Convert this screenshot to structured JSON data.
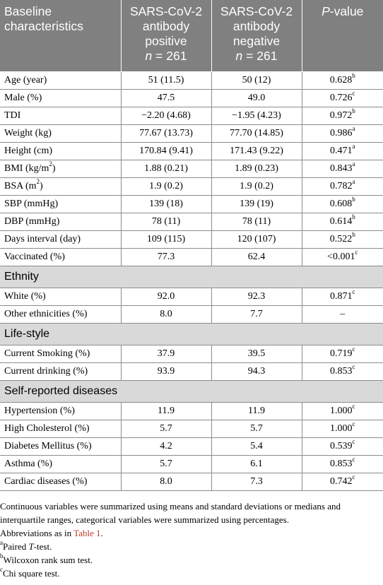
{
  "header": {
    "col1_line1": "Baseline",
    "col1_line2": "characteristics",
    "col2_line1": "SARS-CoV-2",
    "col2_line2": "antibody",
    "col2_line3": "positive",
    "col2_n_label": "n",
    "col2_n_value": " = 261",
    "col3_line1": "SARS-CoV-2",
    "col3_line2": "antibody",
    "col3_line3": "negative",
    "col3_n_label": "n",
    "col3_n_value": " = 261",
    "col4_p": "P",
    "col4_rest": "-value"
  },
  "rows": [
    {
      "label": "Age (year)",
      "pos": "51 (11.5)",
      "neg": "50 (12)",
      "p": "0.628",
      "sup": "b"
    },
    {
      "label": "Male (%)",
      "pos": "47.5",
      "neg": "49.0",
      "p": "0.726",
      "sup": "c"
    },
    {
      "label": "TDI",
      "pos": "−2.20 (4.68)",
      "neg": "−1.95 (4.23)",
      "p": "0.972",
      "sup": "b"
    },
    {
      "label": "Weight (kg)",
      "pos": "77.67 (13.73)",
      "neg": "77.70 (14.85)",
      "p": "0.986",
      "sup": "a"
    },
    {
      "label": "Height (cm)",
      "pos": "170.84 (9.41)",
      "neg": "171.43 (9.22)",
      "p": "0.471",
      "sup": "a"
    },
    {
      "label": "BMI (kg/m",
      "label_sup": "2",
      "label_tail": ")",
      "pos": "1.88 (0.21)",
      "neg": "1.89 (0.23)",
      "p": "0.843",
      "sup": "a"
    },
    {
      "label": "BSA (m",
      "label_sup": "2",
      "label_tail": ")",
      "pos": "1.9 (0.2)",
      "neg": "1.9 (0.2)",
      "p": "0.782",
      "sup": "a"
    },
    {
      "label": "SBP (mmHg)",
      "pos": "139 (18)",
      "neg": "139 (19)",
      "p": "0.608",
      "sup": "b"
    },
    {
      "label": "DBP (mmHg)",
      "pos": "78 (11)",
      "neg": "78 (11)",
      "p": "0.614",
      "sup": "b"
    },
    {
      "label": "Days interval (day)",
      "pos": "109 (115)",
      "neg": "120 (107)",
      "p": "0.522",
      "sup": "b"
    },
    {
      "label": "Vaccinated (%)",
      "pos": "77.3",
      "neg": "62.4",
      "p": "<0.001",
      "sup": "c"
    }
  ],
  "sections": [
    {
      "title": "Ethnity",
      "rows": [
        {
          "label": "White (%)",
          "pos": "92.0",
          "neg": "92.3",
          "p": "0.871",
          "sup": "c"
        },
        {
          "label": "Other ethnicities (%)",
          "pos": "8.0",
          "neg": "7.7",
          "p": "–",
          "sup": ""
        }
      ]
    },
    {
      "title": "Life-style",
      "rows": [
        {
          "label": "Current Smoking (%)",
          "pos": "37.9",
          "neg": "39.5",
          "p": "0.719",
          "sup": "c"
        },
        {
          "label": "Current drinking (%)",
          "pos": "93.9",
          "neg": "94.3",
          "p": "0.853",
          "sup": "c"
        }
      ]
    },
    {
      "title": "Self-reported diseases",
      "rows": [
        {
          "label": "Hypertension (%)",
          "pos": "11.9",
          "neg": "11.9",
          "p": "1.000",
          "sup": "c"
        },
        {
          "label": "High Cholesterol (%)",
          "pos": "5.7",
          "neg": "5.7",
          "p": "1.000",
          "sup": "c"
        },
        {
          "label": "Diabetes Mellitus (%)",
          "pos": "4.2",
          "neg": "5.4",
          "p": "0.539",
          "sup": "c"
        },
        {
          "label": "Asthma (%)",
          "pos": "5.7",
          "neg": "6.1",
          "p": "0.853",
          "sup": "c"
        },
        {
          "label": "Cardiac diseases (%)",
          "pos": "8.0",
          "neg": "7.3",
          "p": "0.742",
          "sup": "c"
        }
      ]
    }
  ],
  "notes": {
    "summary": "Continuous variables were summarized using means and standard deviations or medians and interquartile ranges, categorical variables were summarized using percentages.",
    "abbrev_prefix": "Abbreviations as in ",
    "abbrev_link": "Table 1",
    "abbrev_suffix": ".",
    "fn_a_mark": "a",
    "fn_a_pre": "Paired ",
    "fn_a_italic": "T",
    "fn_a_post": "-test.",
    "fn_b_mark": "b",
    "fn_b_text": "Wilcoxon rank sum test.",
    "fn_c_mark": "c",
    "fn_c_text": "Chi square test."
  }
}
